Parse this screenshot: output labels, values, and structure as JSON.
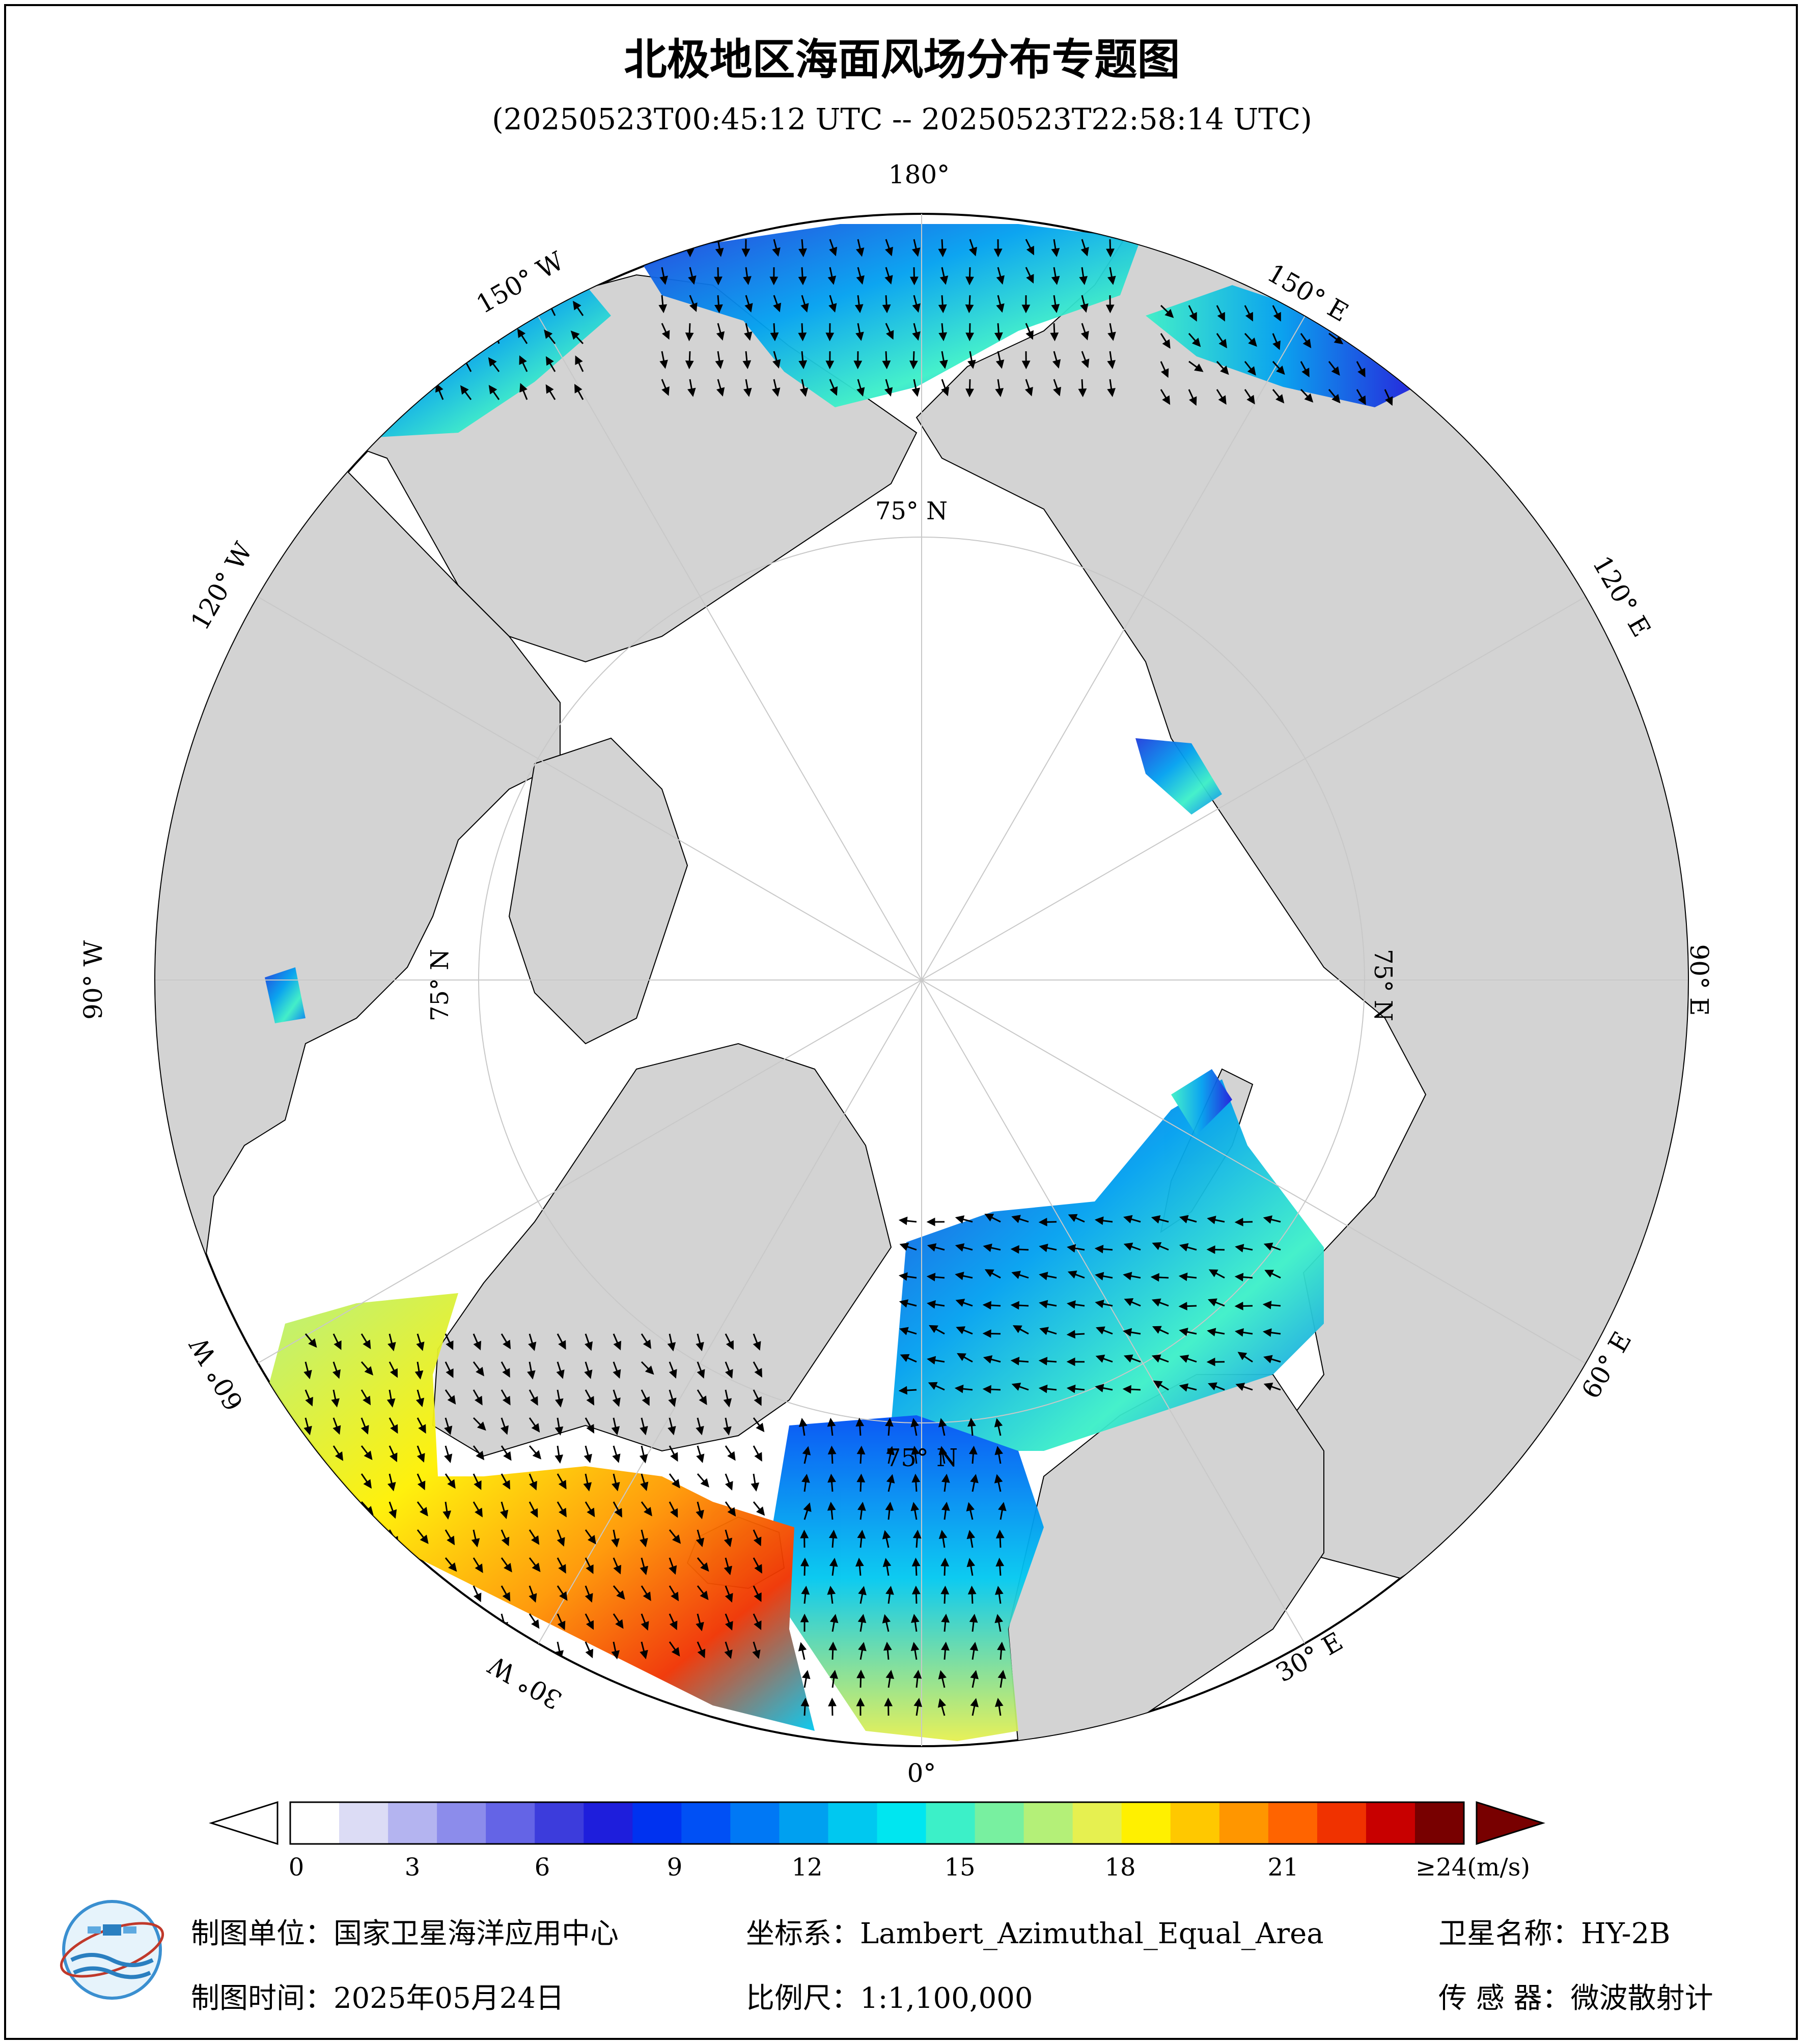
{
  "title": "北极地区海面风场分布专题图",
  "subtitle": "(20250523T00:45:12 UTC -- 20250523T22:58:14 UTC)",
  "map": {
    "projection": "Lambert_Azimuthal_Equal_Area",
    "longitude_labels": [
      "180°",
      "150° E",
      "120° E",
      "90° E",
      "60° E",
      "30° E",
      "0°",
      "30° W",
      "60° W",
      "90° W",
      "120° W",
      "150° W"
    ],
    "latitude_labels": [
      "75° N",
      "75° N",
      "75° N",
      "75° N"
    ],
    "colors": {
      "land": "#d3d3d3",
      "ice_no_data": "#ffffff",
      "ocean_frame": "#ffffff"
    }
  },
  "colorbar": {
    "ticks": [
      "0",
      "3",
      "6",
      "9",
      "12",
      "15",
      "18",
      "21"
    ],
    "max_label": "≥24",
    "unit": "(m/s)",
    "min": 0,
    "max": 24,
    "colors": [
      "#ffffff",
      "#dcdcf5",
      "#b4b4f0",
      "#8c8ceb",
      "#6464e6",
      "#3c3cdc",
      "#1e1edc",
      "#0032f0",
      "#0050f5",
      "#0078f5",
      "#00a0f0",
      "#00c8f0",
      "#00e6f0",
      "#3cf0c8",
      "#78f0a0",
      "#b4f078",
      "#e6f050",
      "#fff000",
      "#ffc800",
      "#ff9600",
      "#ff6400",
      "#f03200",
      "#c80000",
      "#780000"
    ]
  },
  "footer": {
    "org_label": "制图单位：国家卫星海洋应用中心",
    "date_label": "制图时间：2025年05月24日",
    "crs_label": "坐标系：Lambert_Azimuthal_Equal_Area",
    "scale_label": "比例尺：1:1,100,000",
    "satellite_label": "卫星名称：HY-2B",
    "sensor_label": "传 感 器：微波散射计"
  }
}
